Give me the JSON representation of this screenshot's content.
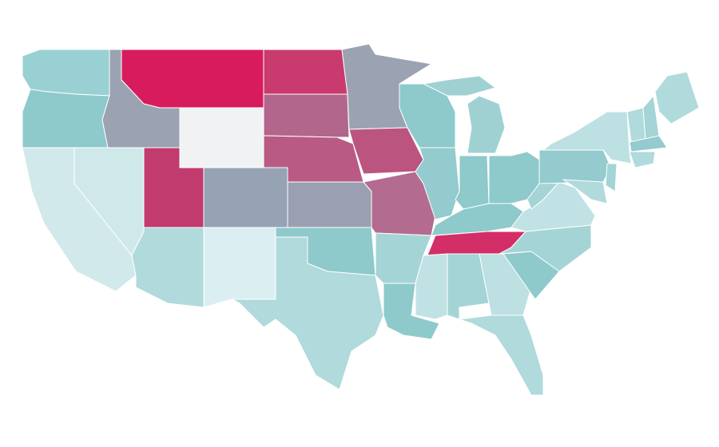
{
  "map": {
    "regions": [
      {
        "color": "#99d0d3"
      },
      {
        "color": "#8ec9cb"
      },
      {
        "color": "#9ba2b2"
      },
      {
        "color": "#d81b5d"
      },
      {
        "color": "#f1f2f3"
      },
      {
        "color": "#c93a6f"
      },
      {
        "color": "#b3668c"
      },
      {
        "color": "#b95a85"
      },
      {
        "color": "#9ba2b2"
      },
      {
        "color": "#bc5480"
      },
      {
        "color": "#9aa0b2"
      },
      {
        "color": "#96a3b4"
      },
      {
        "color": "#c23b6e"
      },
      {
        "color": "#cfe9eb"
      },
      {
        "color": "#d2e9ec"
      },
      {
        "color": "#b0dadb"
      },
      {
        "color": "#dbeff2"
      },
      {
        "color": "#8ec9cb"
      },
      {
        "color": "#b0dadb"
      },
      {
        "color": "#b36c8f"
      },
      {
        "color": "#a4d4d6"
      },
      {
        "color": "#8ec9cb"
      },
      {
        "color": "#8ec9cb"
      },
      {
        "color": "#93cbce"
      },
      {
        "color": "#9fd1d3"
      },
      {
        "color": "#9fd1d3"
      },
      {
        "color": "#8ec9cb"
      },
      {
        "color": "#8ec9cb"
      },
      {
        "color": "#8ec9cb"
      },
      {
        "color": "#d42e68"
      },
      {
        "color": "#c1e2e4"
      },
      {
        "color": "#a4d4d6"
      },
      {
        "color": "#bde0e2"
      },
      {
        "color": "#b0dadb"
      },
      {
        "color": "#8ec9cb"
      },
      {
        "color": "#a4d4d6"
      },
      {
        "color": "#c1e2e4"
      },
      {
        "color": "#a4d4d6"
      },
      {
        "color": "#93cbce"
      },
      {
        "color": "#bde0e2"
      },
      {
        "color": "#b0dadb"
      },
      {
        "color": "#b0dadb"
      },
      {
        "color": "#a4d4d6"
      },
      {
        "color": "#93cbce"
      },
      {
        "color": "#b0dadb"
      },
      {
        "color": "#a4d4d6"
      },
      {
        "color": "#b0dadb"
      }
    ]
  }
}
